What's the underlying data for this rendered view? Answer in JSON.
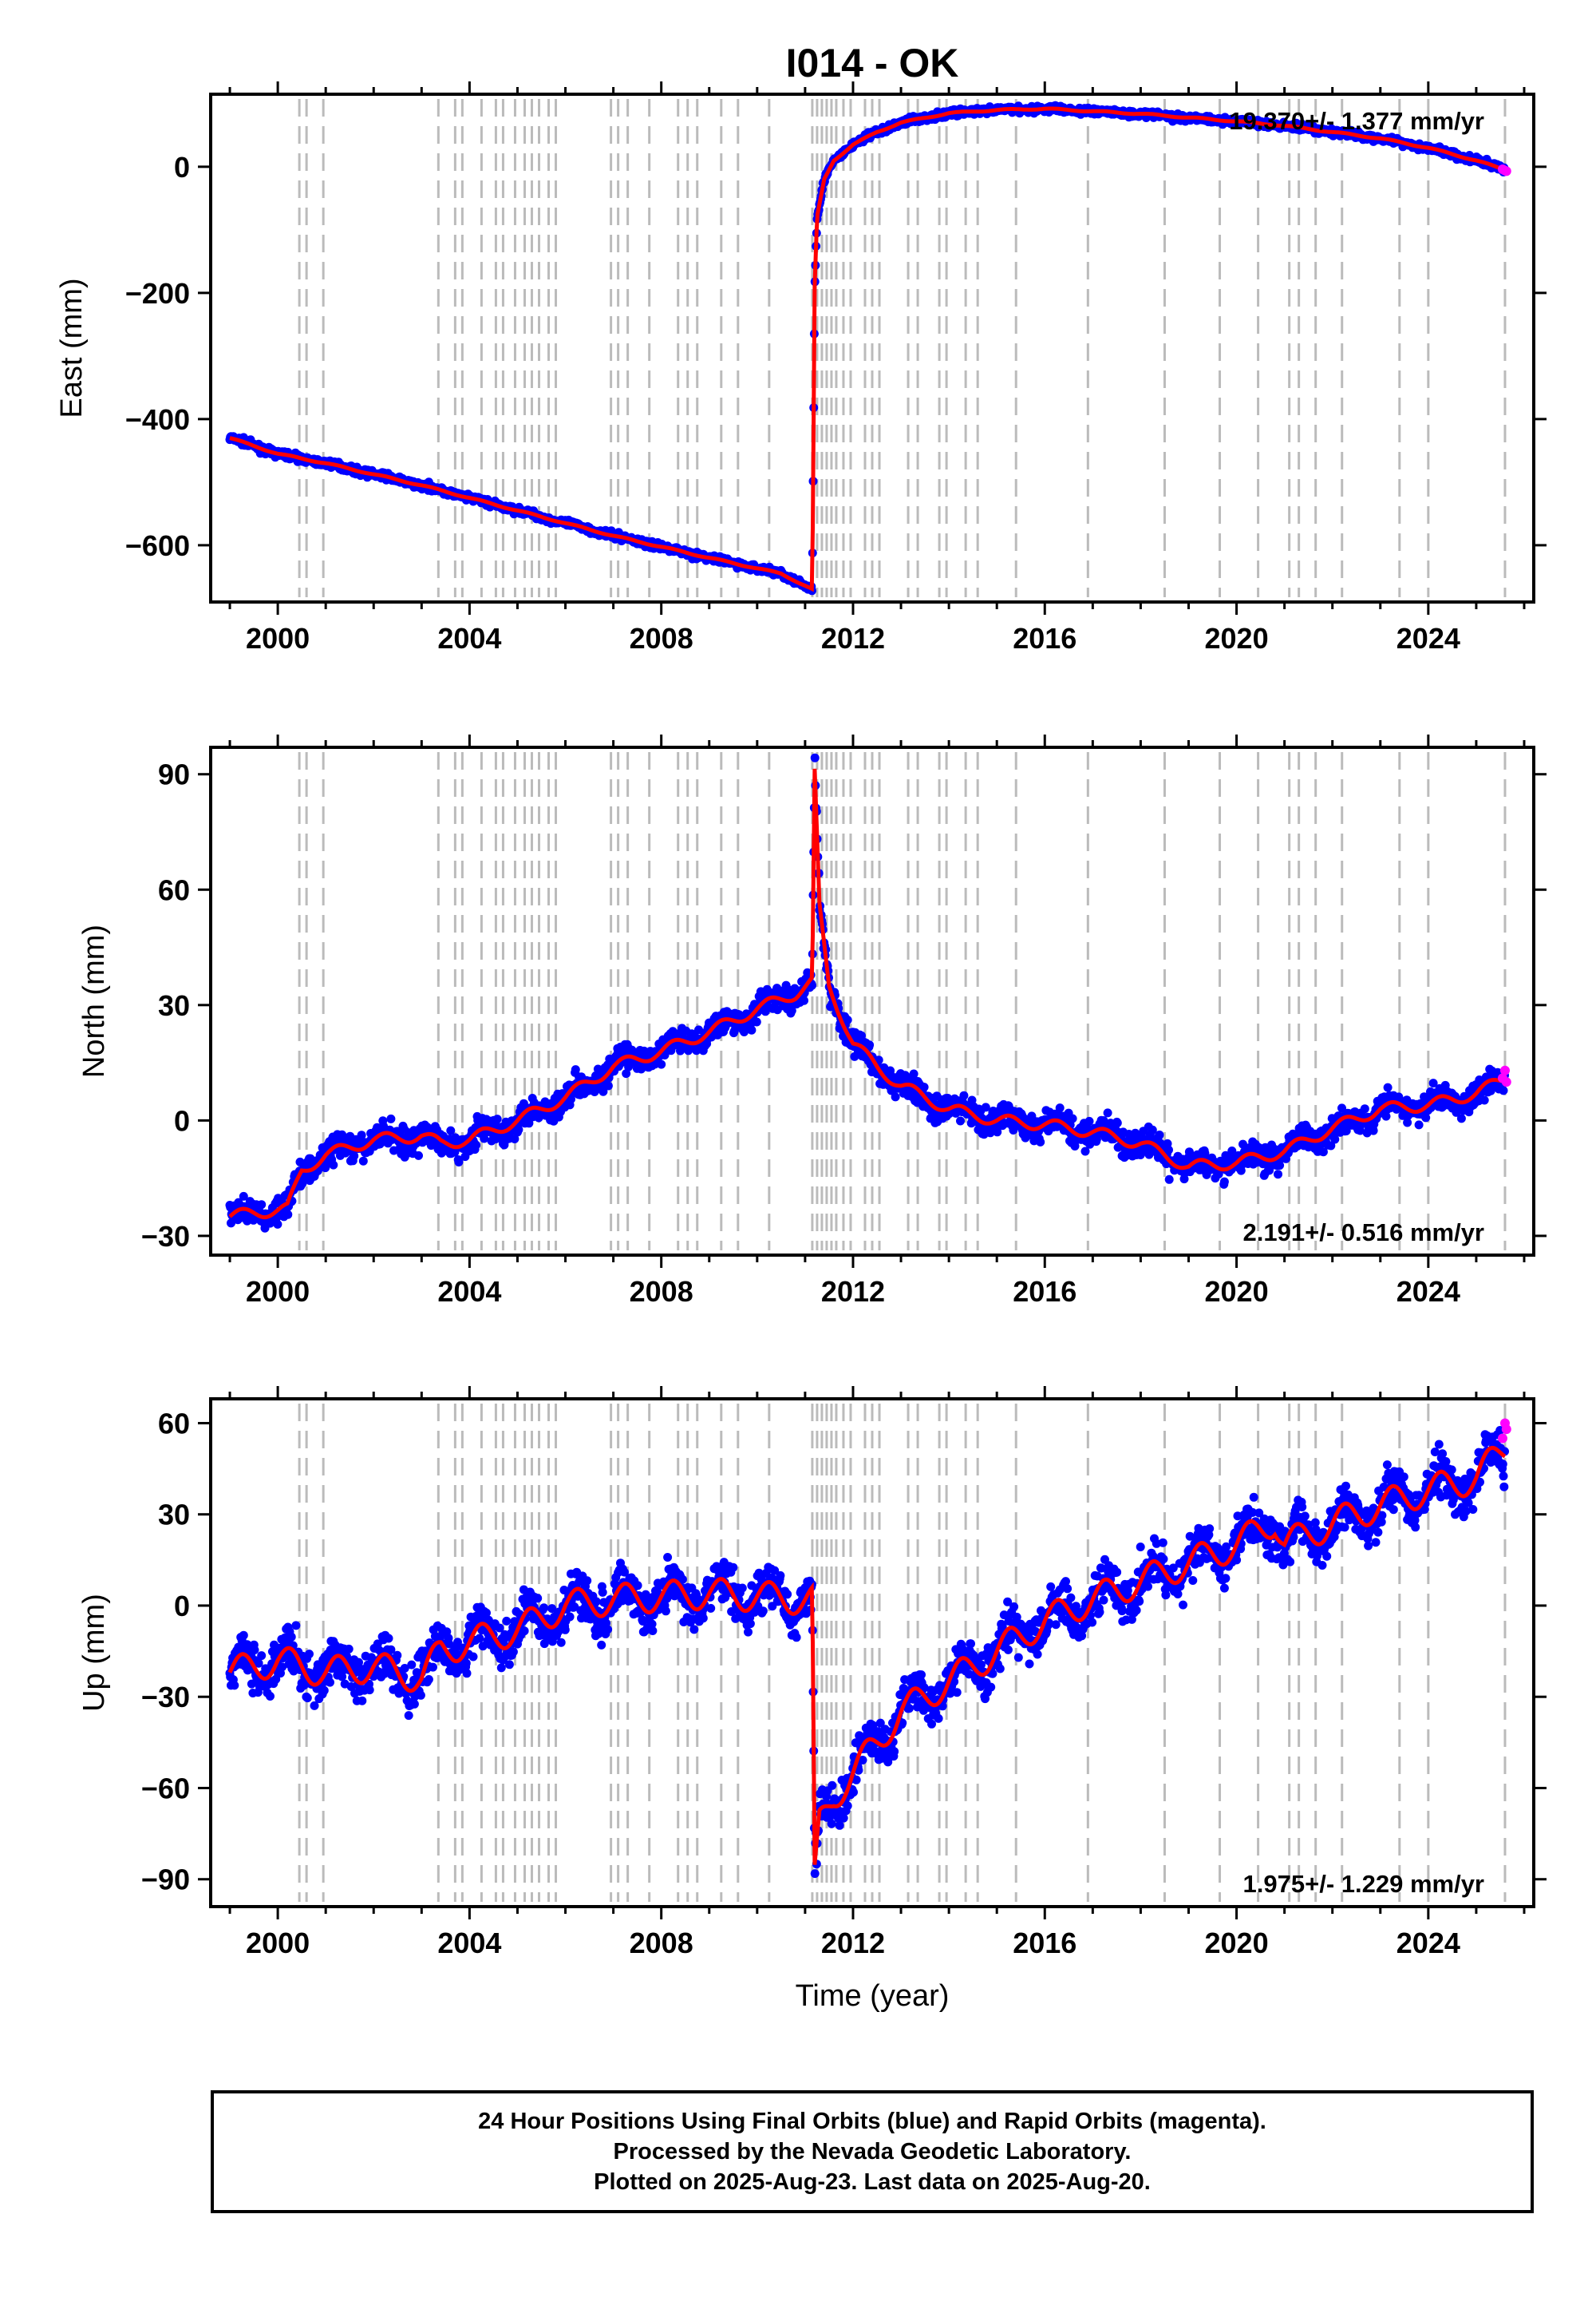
{
  "title": "I014 - OK",
  "footer": {
    "line1": "24 Hour Positions Using Final Orbits (blue) and Rapid Orbits (magenta).",
    "line2": "Processed by the Nevada Geodetic Laboratory.",
    "line3": "Plotted on 2025-Aug-23. Last data on 2025-Aug-20."
  },
  "colors": {
    "final_orbits": "#0000ff",
    "rapid_orbits": "#ff00ff",
    "model": "#ff0000",
    "events": "#bbbbbb"
  },
  "chart_data": [
    {
      "type": "scatter",
      "ylabel": "East (mm)",
      "xlabel": "",
      "xlim": [
        1998.6,
        2026.2
      ],
      "ylim": [
        -690,
        115
      ],
      "xticks": [
        2000,
        2004,
        2008,
        2012,
        2016,
        2020,
        2024
      ],
      "yticks": [
        -600,
        -400,
        -200,
        0
      ],
      "ytick_labels": [
        "−600",
        "−400",
        "−200",
        "0"
      ],
      "grid": false,
      "rate_label": "19.370+/- 1.377 mm/yr",
      "rate_position": "top-right",
      "series": [
        {
          "name": "Final Orbits",
          "x": [
            1999.0,
            2000.0,
            2001.0,
            2003.0,
            2005.0,
            2007.0,
            2009.0,
            2010.5,
            2011.15,
            2011.2,
            2011.25,
            2011.4,
            2011.6,
            2012.0,
            2012.5,
            2013.0,
            2014.0,
            2015.0,
            2016.0,
            2017.0,
            2018.0,
            2019.0,
            2020.0,
            2021.0,
            2022.0,
            2023.0,
            2024.0,
            2025.0,
            2025.6
          ],
          "y": [
            -430,
            -455,
            -470,
            -505,
            -545,
            -585,
            -620,
            -645,
            -670,
            -190,
            -80,
            -20,
            10,
            35,
            55,
            70,
            85,
            90,
            92,
            88,
            84,
            78,
            72,
            65,
            55,
            45,
            30,
            10,
            -5
          ]
        },
        {
          "name": "Rapid Orbits",
          "x": [
            2025.55,
            2025.6,
            2025.63
          ],
          "y": [
            -4,
            -6,
            -7
          ]
        }
      ],
      "event_lines": [
        2000.45,
        2000.6,
        2000.95,
        2003.35,
        2003.7,
        2003.85,
        2004.25,
        2004.55,
        2004.7,
        2004.95,
        2005.15,
        2005.3,
        2005.45,
        2005.65,
        2005.8,
        2006.95,
        2007.1,
        2007.3,
        2007.75,
        2008.35,
        2008.55,
        2008.75,
        2009.25,
        2009.6,
        2010.25,
        2011.15,
        2011.25,
        2011.35,
        2011.45,
        2011.55,
        2011.65,
        2011.8,
        2011.95,
        2012.25,
        2012.4,
        2012.55,
        2013.15,
        2013.35,
        2013.8,
        2013.95,
        2014.35,
        2014.6,
        2015.4,
        2016.9,
        2018.5,
        2019.65,
        2020.45,
        2021.1,
        2021.3,
        2021.65,
        2022.2,
        2023.4,
        2024.0,
        2025.6
      ]
    },
    {
      "type": "scatter",
      "ylabel": "North (mm)",
      "xlabel": "",
      "xlim": [
        1998.6,
        2026.2
      ],
      "ylim": [
        -35,
        97
      ],
      "xticks": [
        2000,
        2004,
        2008,
        2012,
        2016,
        2020,
        2024
      ],
      "yticks": [
        -30,
        0,
        30,
        60,
        90
      ],
      "ytick_labels": [
        "−30",
        "0",
        "30",
        "60",
        "90"
      ],
      "grid": false,
      "rate_label": "2.191+/- 0.516 mm/yr",
      "rate_position": "bottom-right",
      "series": [
        {
          "name": "Final Orbits",
          "x": [
            1999.0,
            1999.5,
            2000.2,
            2000.5,
            2001.0,
            2002.0,
            2003.0,
            2003.4,
            2004.0,
            2005.0,
            2006.0,
            2007.0,
            2008.0,
            2009.0,
            2010.0,
            2010.8,
            2011.15,
            2011.2,
            2011.3,
            2011.5,
            2012.0,
            2012.5,
            2013.0,
            2014.0,
            2015.0,
            2016.0,
            2017.0,
            2018.0,
            2019.0,
            2020.0,
            2021.0,
            2022.0,
            2023.0,
            2024.0,
            2025.0,
            2025.6
          ],
          "y": [
            -25,
            -24,
            -23,
            -13,
            -9,
            -5,
            -4,
            -6,
            -5,
            0,
            6,
            14,
            18,
            23,
            29,
            33,
            36,
            90,
            55,
            35,
            20,
            14,
            9,
            3,
            0,
            -1,
            -3,
            -6,
            -12,
            -11,
            -8,
            -2,
            3,
            4,
            7,
            11
          ]
        },
        {
          "name": "Rapid Orbits",
          "x": [
            2025.55,
            2025.6,
            2025.63
          ],
          "y": [
            11,
            13,
            10
          ]
        }
      ],
      "event_lines": [
        2000.45,
        2000.6,
        2000.95,
        2003.35,
        2003.7,
        2003.85,
        2004.25,
        2004.55,
        2004.7,
        2004.95,
        2005.15,
        2005.3,
        2005.45,
        2005.65,
        2005.8,
        2006.95,
        2007.1,
        2007.3,
        2007.75,
        2008.35,
        2008.55,
        2008.75,
        2009.25,
        2009.6,
        2010.25,
        2011.15,
        2011.25,
        2011.35,
        2011.45,
        2011.55,
        2011.65,
        2011.8,
        2011.95,
        2012.25,
        2012.4,
        2012.55,
        2013.15,
        2013.35,
        2013.8,
        2013.95,
        2014.35,
        2014.6,
        2015.4,
        2016.9,
        2018.5,
        2019.65,
        2020.45,
        2021.1,
        2021.3,
        2021.65,
        2022.2,
        2023.4,
        2024.0,
        2025.6
      ]
    },
    {
      "type": "scatter",
      "ylabel": "Up (mm)",
      "xlabel": "Time (year)",
      "xlim": [
        1998.6,
        2026.2
      ],
      "ylim": [
        -99,
        68
      ],
      "xticks": [
        2000,
        2004,
        2008,
        2012,
        2016,
        2020,
        2024
      ],
      "yticks": [
        -90,
        -60,
        -30,
        0,
        30,
        60
      ],
      "ytick_labels": [
        "−90",
        "−60",
        "−30",
        "0",
        "30",
        "60"
      ],
      "grid": false,
      "rate_label": "1.975+/- 1.229 mm/yr",
      "rate_position": "bottom-right",
      "series": [
        {
          "name": "Final Orbits",
          "x": [
            1999.0,
            2000.0,
            2001.0,
            2002.0,
            2003.0,
            2003.4,
            2004.0,
            2005.0,
            2006.0,
            2007.0,
            2008.0,
            2009.0,
            2010.0,
            2011.0,
            2011.15,
            2011.2,
            2011.3,
            2011.6,
            2012.0,
            2012.5,
            2013.0,
            2014.0,
            2015.0,
            2016.0,
            2017.0,
            2018.0,
            2019.0,
            2020.0,
            2020.8,
            2021.0,
            2022.0,
            2023.0,
            2024.0,
            2025.0,
            2025.6
          ],
          "y": [
            -22,
            -18,
            -22,
            -20,
            -24,
            -15,
            -12,
            -8,
            0,
            2,
            3,
            4,
            3,
            2,
            2,
            -90,
            -72,
            -63,
            -55,
            -45,
            -35,
            -25,
            -15,
            -5,
            2,
            8,
            14,
            20,
            28,
            20,
            27,
            33,
            38,
            42,
            52
          ]
        },
        {
          "name": "Rapid Orbits",
          "x": [
            2025.55,
            2025.6,
            2025.63
          ],
          "y": [
            55,
            60,
            58
          ]
        }
      ],
      "event_lines": [
        2000.45,
        2000.6,
        2000.95,
        2003.35,
        2003.7,
        2003.85,
        2004.25,
        2004.55,
        2004.7,
        2004.95,
        2005.15,
        2005.3,
        2005.45,
        2005.65,
        2005.8,
        2006.95,
        2007.1,
        2007.3,
        2007.75,
        2008.35,
        2008.55,
        2008.75,
        2009.25,
        2009.6,
        2010.25,
        2011.15,
        2011.25,
        2011.35,
        2011.45,
        2011.55,
        2011.65,
        2011.8,
        2011.95,
        2012.25,
        2012.4,
        2012.55,
        2013.15,
        2013.35,
        2013.8,
        2013.95,
        2014.35,
        2014.6,
        2015.4,
        2016.9,
        2018.5,
        2019.65,
        2020.45,
        2021.1,
        2021.3,
        2021.65,
        2022.2,
        2023.4,
        2024.0,
        2025.6
      ]
    }
  ]
}
